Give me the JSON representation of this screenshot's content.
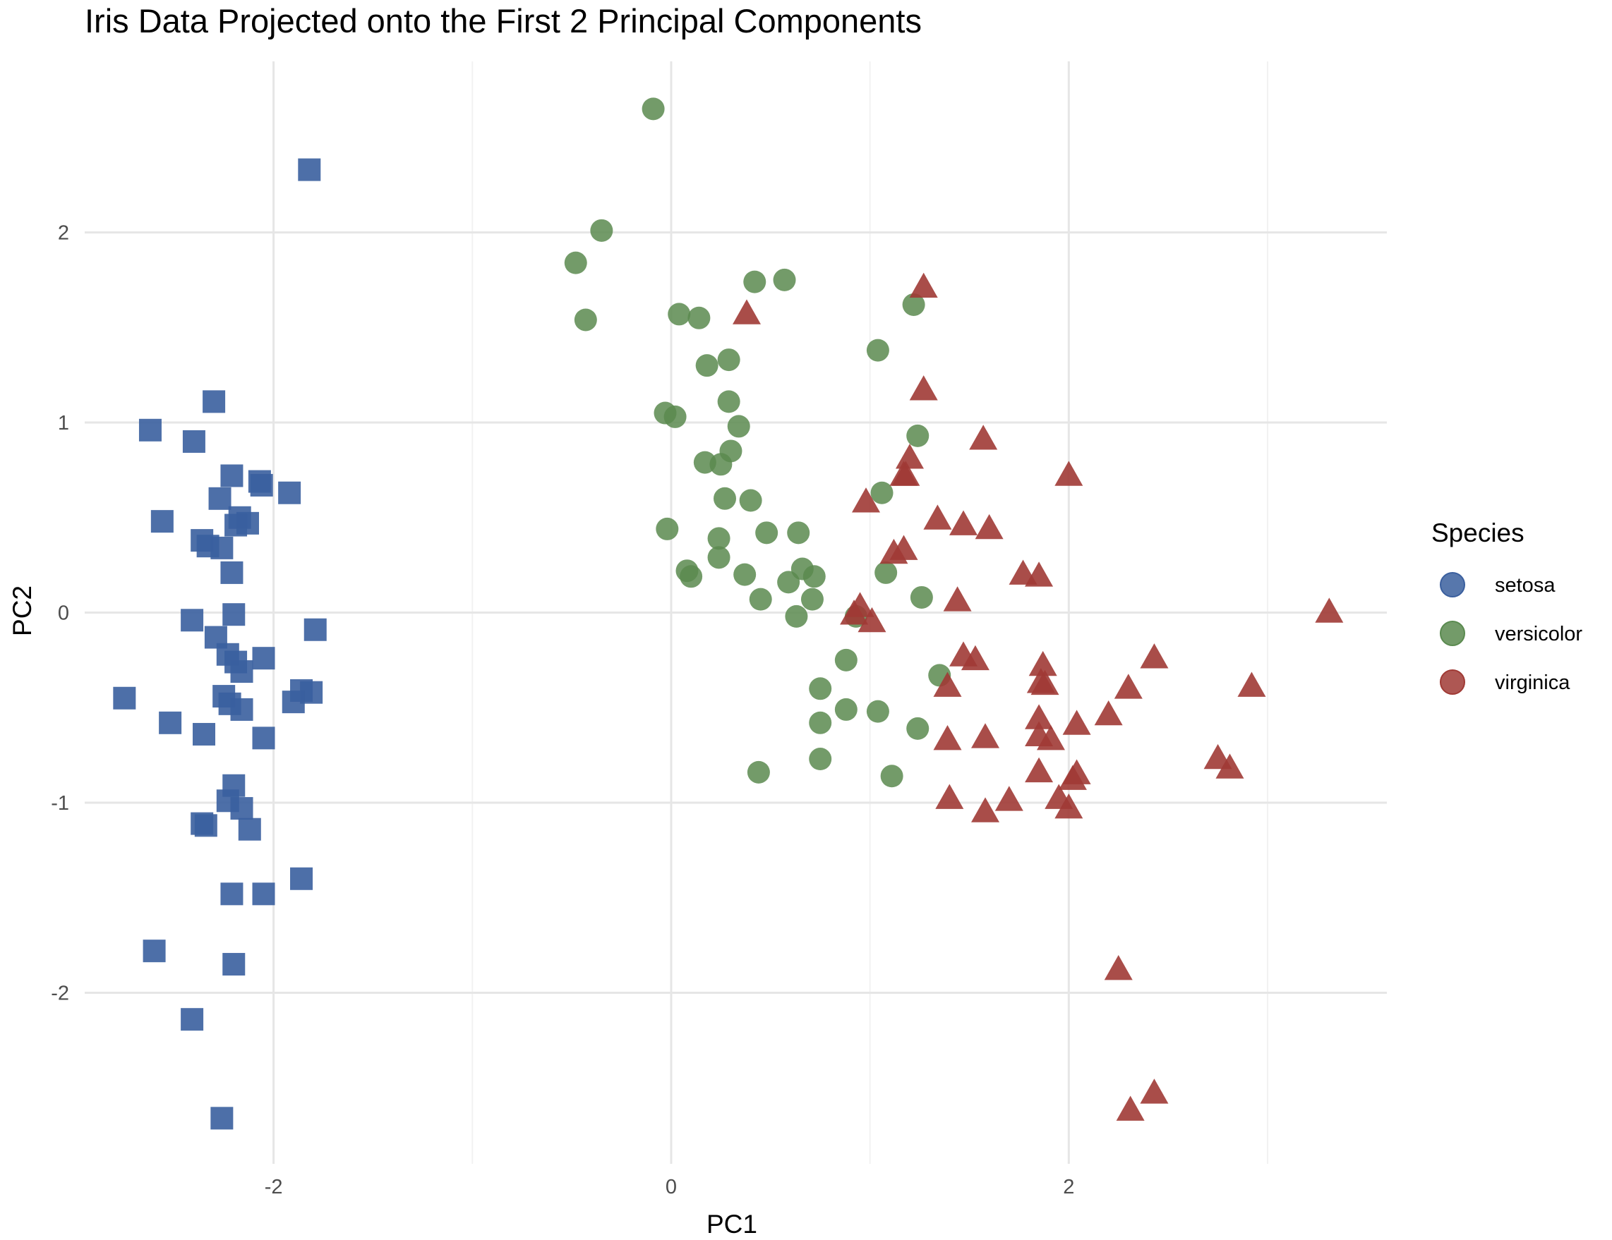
{
  "chart_data": {
    "type": "scatter",
    "title": "Iris Data Projected onto the First 2 Principal Components",
    "xlabel": "PC1",
    "ylabel": "PC2",
    "xlim": [
      -2.95,
      3.6
    ],
    "ylim": [
      -2.9,
      2.9
    ],
    "x_ticks": [
      -2,
      0,
      2
    ],
    "y_ticks": [
      -2,
      -1,
      0,
      1,
      2
    ],
    "x_tick_labels": [
      "-2",
      "0",
      "2"
    ],
    "y_tick_labels": [
      "-2",
      "-1",
      "0",
      "1",
      "2"
    ],
    "grid": true,
    "legend": {
      "title": "Species",
      "position": "right",
      "entries": [
        "setosa",
        "versicolor",
        "virginica"
      ]
    },
    "series": [
      {
        "name": "setosa",
        "shape": "square",
        "color": "#3a5f9e",
        "points": [
          [
            -1.82,
            2.33
          ],
          [
            -2.3,
            1.11
          ],
          [
            -2.62,
            0.96
          ],
          [
            -2.4,
            0.9
          ],
          [
            -2.21,
            0.72
          ],
          [
            -2.07,
            0.69
          ],
          [
            -2.06,
            0.67
          ],
          [
            -1.92,
            0.63
          ],
          [
            -2.27,
            0.6
          ],
          [
            -2.56,
            0.48
          ],
          [
            -2.17,
            0.5
          ],
          [
            -2.13,
            0.47
          ],
          [
            -2.19,
            0.46
          ],
          [
            -2.36,
            0.38
          ],
          [
            -2.33,
            0.35
          ],
          [
            -2.26,
            0.34
          ],
          [
            -2.21,
            0.21
          ],
          [
            -2.2,
            -0.01
          ],
          [
            -2.41,
            -0.04
          ],
          [
            -1.79,
            -0.09
          ],
          [
            -2.29,
            -0.13
          ],
          [
            -2.23,
            -0.22
          ],
          [
            -2.19,
            -0.26
          ],
          [
            -2.05,
            -0.24
          ],
          [
            -2.16,
            -0.31
          ],
          [
            -1.86,
            -0.41
          ],
          [
            -1.81,
            -0.42
          ],
          [
            -1.9,
            -0.47
          ],
          [
            -2.25,
            -0.44
          ],
          [
            -2.22,
            -0.48
          ],
          [
            -2.16,
            -0.51
          ],
          [
            -2.75,
            -0.45
          ],
          [
            -2.52,
            -0.58
          ],
          [
            -2.35,
            -0.64
          ],
          [
            -2.05,
            -0.66
          ],
          [
            -2.2,
            -0.91
          ],
          [
            -2.23,
            -0.99
          ],
          [
            -2.16,
            -1.03
          ],
          [
            -2.36,
            -1.11
          ],
          [
            -2.34,
            -1.12
          ],
          [
            -2.12,
            -1.14
          ],
          [
            -2.21,
            -1.48
          ],
          [
            -2.05,
            -1.48
          ],
          [
            -1.86,
            -1.4
          ],
          [
            -2.6,
            -1.78
          ],
          [
            -2.2,
            -1.85
          ],
          [
            -2.41,
            -2.14
          ],
          [
            -2.26,
            -2.66
          ]
        ]
      },
      {
        "name": "versicolor",
        "shape": "circle",
        "color": "#5a8a4f",
        "points": [
          [
            -0.09,
            2.65
          ],
          [
            -0.35,
            2.01
          ],
          [
            -0.48,
            1.84
          ],
          [
            -0.43,
            1.54
          ],
          [
            0.42,
            1.74
          ],
          [
            0.57,
            1.75
          ],
          [
            0.04,
            1.57
          ],
          [
            0.14,
            1.55
          ],
          [
            1.22,
            1.62
          ],
          [
            1.04,
            1.38
          ],
          [
            0.18,
            1.3
          ],
          [
            0.29,
            1.33
          ],
          [
            0.29,
            1.11
          ],
          [
            -0.03,
            1.05
          ],
          [
            0.02,
            1.03
          ],
          [
            0.34,
            0.98
          ],
          [
            1.24,
            0.93
          ],
          [
            0.3,
            0.85
          ],
          [
            0.17,
            0.79
          ],
          [
            0.25,
            0.78
          ],
          [
            1.06,
            0.63
          ],
          [
            0.27,
            0.6
          ],
          [
            0.4,
            0.59
          ],
          [
            -0.02,
            0.44
          ],
          [
            0.48,
            0.42
          ],
          [
            0.64,
            0.42
          ],
          [
            0.24,
            0.39
          ],
          [
            0.08,
            0.22
          ],
          [
            0.1,
            0.19
          ],
          [
            0.24,
            0.29
          ],
          [
            0.37,
            0.2
          ],
          [
            0.66,
            0.23
          ],
          [
            0.72,
            0.19
          ],
          [
            0.59,
            0.16
          ],
          [
            1.08,
            0.21
          ],
          [
            1.26,
            0.08
          ],
          [
            0.45,
            0.07
          ],
          [
            0.71,
            0.07
          ],
          [
            0.63,
            -0.02
          ],
          [
            0.93,
            -0.02
          ],
          [
            0.88,
            -0.25
          ],
          [
            1.35,
            -0.33
          ],
          [
            0.75,
            -0.4
          ],
          [
            1.04,
            -0.52
          ],
          [
            0.88,
            -0.51
          ],
          [
            0.75,
            -0.58
          ],
          [
            1.24,
            -0.61
          ],
          [
            0.75,
            -0.77
          ],
          [
            0.44,
            -0.84
          ],
          [
            1.11,
            -0.86
          ]
        ]
      },
      {
        "name": "virginica",
        "shape": "triangle",
        "color": "#a03a35",
        "points": [
          [
            1.27,
            1.71
          ],
          [
            0.38,
            1.57
          ],
          [
            1.27,
            1.17
          ],
          [
            1.57,
            0.91
          ],
          [
            1.2,
            0.81
          ],
          [
            1.18,
            0.72
          ],
          [
            1.17,
            0.72
          ],
          [
            2.0,
            0.72
          ],
          [
            0.98,
            0.58
          ],
          [
            1.34,
            0.49
          ],
          [
            1.47,
            0.46
          ],
          [
            1.6,
            0.44
          ],
          [
            1.17,
            0.33
          ],
          [
            1.12,
            0.31
          ],
          [
            1.77,
            0.2
          ],
          [
            1.85,
            0.19
          ],
          [
            1.44,
            0.06
          ],
          [
            0.95,
            0.03
          ],
          [
            0.92,
            -0.01
          ],
          [
            1.01,
            -0.05
          ],
          [
            3.31,
            0.0
          ],
          [
            1.47,
            -0.23
          ],
          [
            1.53,
            -0.25
          ],
          [
            1.87,
            -0.28
          ],
          [
            2.43,
            -0.24
          ],
          [
            1.86,
            -0.37
          ],
          [
            1.88,
            -0.38
          ],
          [
            1.39,
            -0.39
          ],
          [
            2.3,
            -0.4
          ],
          [
            2.92,
            -0.39
          ],
          [
            1.85,
            -0.56
          ],
          [
            2.04,
            -0.59
          ],
          [
            2.2,
            -0.54
          ],
          [
            1.85,
            -0.65
          ],
          [
            1.91,
            -0.67
          ],
          [
            1.39,
            -0.67
          ],
          [
            1.58,
            -0.66
          ],
          [
            2.75,
            -0.77
          ],
          [
            2.81,
            -0.82
          ],
          [
            1.85,
            -0.84
          ],
          [
            2.04,
            -0.85
          ],
          [
            2.02,
            -0.88
          ],
          [
            1.4,
            -0.98
          ],
          [
            1.7,
            -0.99
          ],
          [
            1.95,
            -0.98
          ],
          [
            1.58,
            -1.05
          ],
          [
            2.0,
            -1.03
          ],
          [
            2.25,
            -1.88
          ],
          [
            2.43,
            -2.53
          ],
          [
            2.31,
            -2.62
          ]
        ]
      }
    ]
  }
}
